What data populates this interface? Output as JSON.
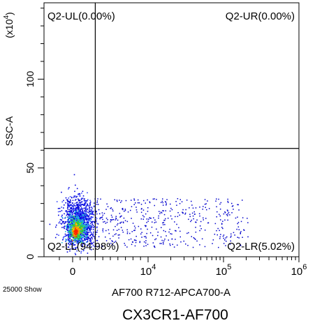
{
  "chart_data": {
    "type": "scatter",
    "title": "CX3CR1-AF700",
    "xlabel": "AF700 R712-APCA700-A",
    "ylabel": "SSC-A",
    "y_scale_label": "(x10",
    "y_scale_exponent": "4",
    "footer_note": "25000 Show",
    "x_scale": "biexponential",
    "x_ticks": [
      {
        "value": 0,
        "base": "0",
        "exp": ""
      },
      {
        "value": 10000,
        "base": "10",
        "exp": "4"
      },
      {
        "value": 100000,
        "base": "10",
        "exp": "5"
      },
      {
        "value": 1000000,
        "base": "10",
        "exp": "6"
      }
    ],
    "y_ticks": [
      {
        "value": 0,
        "label": "0"
      },
      {
        "value": 50,
        "label": "50"
      },
      {
        "value": 100,
        "label": "100"
      }
    ],
    "ylim": [
      0,
      143
    ],
    "gate": {
      "x": 3000,
      "y": 61
    },
    "quadrants": [
      {
        "name": "Q2-UL",
        "label": "Q2-UL(0.00%)",
        "percent": 0.0
      },
      {
        "name": "Q2-UR",
        "label": "Q2-UR(0.00%)",
        "percent": 0.0
      },
      {
        "name": "Q2-LL",
        "label": "Q2-LL(94.98%)",
        "percent": 94.98
      },
      {
        "name": "Q2-LR",
        "label": "Q2-LR(5.02%)",
        "percent": 5.02
      }
    ],
    "events_shown": 25000,
    "grid": false
  }
}
